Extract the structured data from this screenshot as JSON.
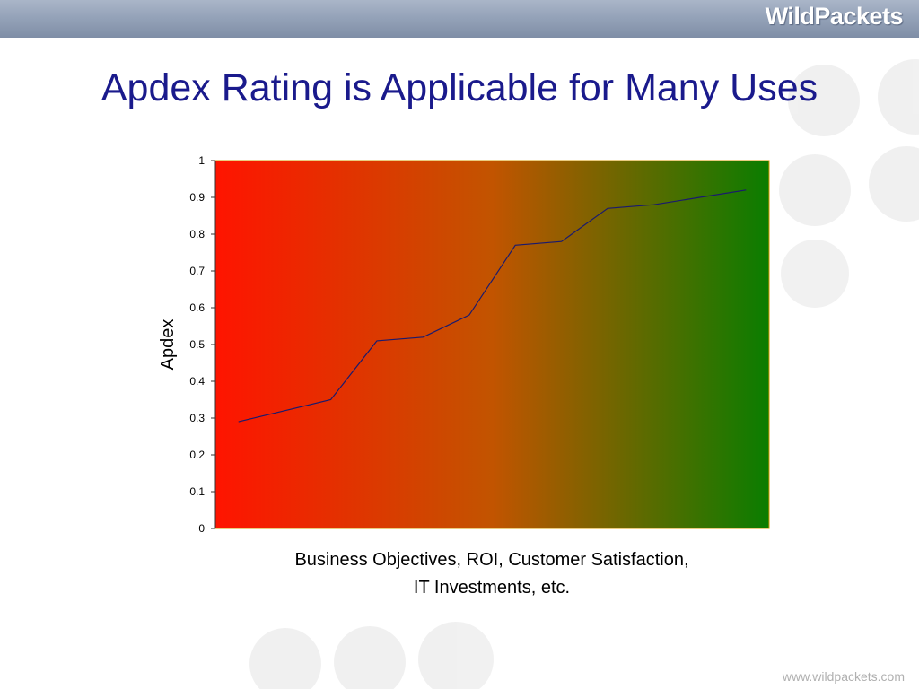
{
  "header": {
    "logo_text": "WildPackets"
  },
  "slide": {
    "title": "Apdex Rating is Applicable for Many Uses"
  },
  "footer": {
    "url": "www.wildpackets.com"
  },
  "chart_data": {
    "type": "line",
    "title": "",
    "ylabel": "Apdex",
    "xlabel_lines": [
      "Business Objectives, ROI, Customer Satisfaction,",
      "IT Investments, etc."
    ],
    "ylim": [
      0,
      1
    ],
    "yticks": [
      "0",
      "0.1",
      "0.2",
      "0.3",
      "0.4",
      "0.5",
      "0.6",
      "0.7",
      "0.8",
      "0.9",
      "1"
    ],
    "x": [
      1,
      2,
      3,
      4,
      5,
      6,
      7,
      8,
      9,
      10,
      11,
      12
    ],
    "xlim": [
      0.5,
      12.5
    ],
    "grid": false,
    "background_gradient": {
      "from": "#ff1400",
      "to": "#0a7d00"
    },
    "series": [
      {
        "values": [
          0.29,
          0.32,
          0.35,
          0.51,
          0.52,
          0.58,
          0.77,
          0.78,
          0.87,
          0.88,
          0.9,
          0.92
        ],
        "color": "#1a1a6e"
      }
    ]
  }
}
